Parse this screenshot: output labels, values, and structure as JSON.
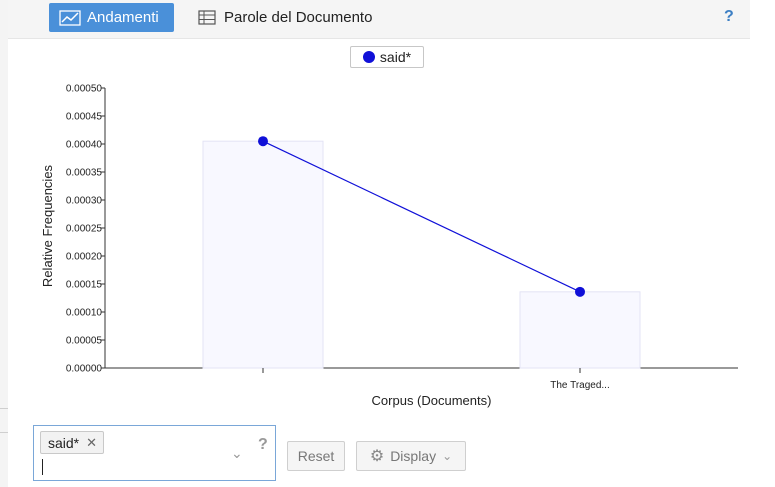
{
  "tabs": {
    "active_label": "Andamenti",
    "inactive_label": "Parole del Documento",
    "help_label": "?"
  },
  "legend": {
    "term": "said*"
  },
  "chart_data": {
    "type": "bar",
    "categories": [
      "",
      "The Traged..."
    ],
    "series": [
      {
        "name": "said*",
        "values": [
          0.000405,
          0.000136
        ],
        "color": "#1010d8"
      }
    ],
    "xlabel": "Corpus (Documents)",
    "ylabel": "Relative Frequencies",
    "ylim": [
      0,
      0.0005
    ],
    "yticks": [
      "0.00000",
      "0.00005",
      "0.00010",
      "0.00015",
      "0.00020",
      "0.00025",
      "0.00030",
      "0.00035",
      "0.00040",
      "0.00045",
      "0.00050"
    ],
    "bar_color": "#f8f8ff",
    "bar_stroke": "#e3e3f4",
    "grid": false
  },
  "controls": {
    "term_chip": "said*",
    "help_label": "?",
    "reset_label": "Reset",
    "display_label": "Display"
  }
}
